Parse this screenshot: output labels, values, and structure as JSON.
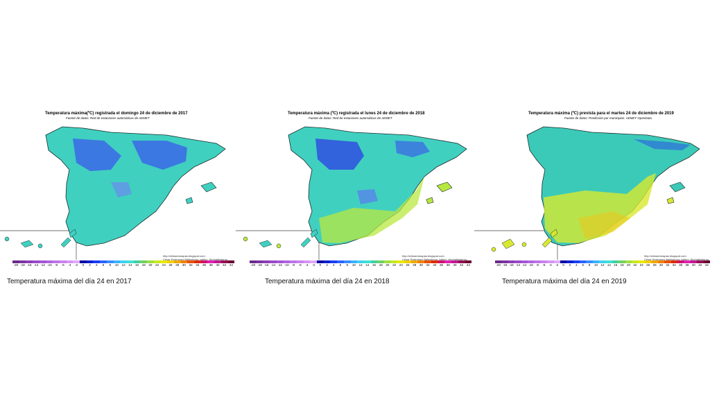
{
  "panels": [
    {
      "title": "Temperatura máxima(ºC) registrada el domingo 24 de diciembre de 2017",
      "source": "Fuente de datos: Red de estaciones automáticas de AEMET",
      "credit_line1": "http://climaenmapas.blogspot.com",
      "credit_line2": "César Rodríguez Ballesteros; twitter: @crballesteros",
      "caption": "Temperatura máxima del día 24 en 2017"
    },
    {
      "title": "Temperatura máxima (ºC) registrada el lunes 24 de diciembre de 2018",
      "source": "Fuente de datos: Red de estaciones automáticas de AEMET",
      "credit_line1": "http://climaenmapas.blogspot.com",
      "credit_line2": "César Rodríguez Ballesteros; twitter: @crballesteros",
      "caption": "Temperatura máxima del día 24 en 2018"
    },
    {
      "title": "Temperatura máxima (ºC) prevista para el martes 24 de diciembre de 2019",
      "source": "Fuente de datos: Predicción por municipios. AEMET OpenData",
      "credit_line1": "http://climaenmapas.blogspot.com",
      "credit_line2": "César Rodríguez Ballesteros; twitter: @crballesteros",
      "caption": "Temperatura máxima del día 24 en 2019"
    }
  ],
  "scale": {
    "ticks": [
      "-20",
      "-18",
      "-16",
      "-14",
      "-12",
      "-10",
      "-8",
      "-6",
      "-4",
      "-2",
      "0",
      "2",
      "4",
      "6",
      "8",
      "10",
      "12",
      "14",
      "16",
      "18",
      "20",
      "22",
      "24",
      "26",
      "28",
      "30",
      "32",
      "34",
      "36",
      "38",
      "40",
      "42",
      "44"
    ],
    "colors": [
      "#6a2a8a",
      "#7b33a0",
      "#8c3cb6",
      "#9a48c8",
      "#a455d6",
      "#b063e0",
      "#bd72e8",
      "#c982ef",
      "#d594f4",
      "#e0a8f8",
      "#0000a0",
      "#0a1fd0",
      "#1a3cf0",
      "#2a63ff",
      "#3a8bff",
      "#3ab0ff",
      "#40d0f0",
      "#40e0d0",
      "#3ed0a0",
      "#70d060",
      "#a0e040",
      "#c8e820",
      "#e8e800",
      "#f0d000",
      "#f0a800",
      "#f08000",
      "#e85000",
      "#e02800",
      "#d01070",
      "#e020b0",
      "#c01890",
      "#901050",
      "#6a0030"
    ]
  },
  "map_colors": {
    "base_2017": "#40d0c0",
    "cold_2017": "#3a62e8",
    "base_2018": "#40d0c0",
    "cold_2018": "#3050e0",
    "warm_2018": "#b8e840",
    "base_2019": "#3ccab8",
    "warm_2019": "#d8e830",
    "cold_2019": "#2a5ee0",
    "outline": "#1a2a2a"
  }
}
